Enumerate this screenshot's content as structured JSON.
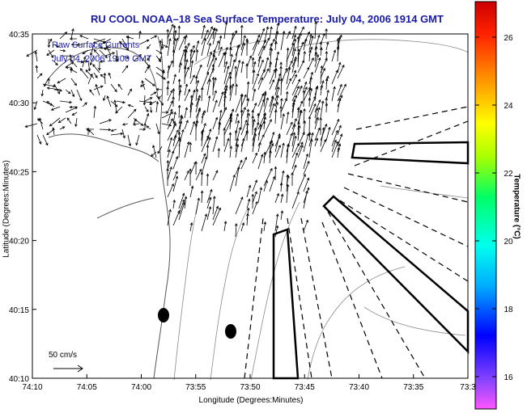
{
  "title": "RU COOL  NOAA–18  Sea Surface Temperature:  July 04, 2006 1914 GMT",
  "legend": {
    "line1": "Raw Surface Currents",
    "line2": "July 04, 2006 19:00 GMT"
  },
  "axes": {
    "xlabel": "Longitude (Degrees:Minutes)",
    "ylabel": "Latitude (Degrees:Minutes)",
    "x_ticks": [
      "74:10",
      "74:05",
      "74:00",
      "73:55",
      "73:50",
      "73:45",
      "73:40",
      "73:35",
      "73:3"
    ],
    "y_ticks": [
      "40:35",
      "40:30",
      "40:25",
      "40:20",
      "40:15",
      "40:10"
    ]
  },
  "scale_label": "50 cm/s",
  "colorbar": {
    "label": "Temperature (°C)",
    "ticks": [
      "26",
      "24",
      "22",
      "20",
      "18",
      "16"
    ]
  },
  "colors": {
    "title_text": "#1a1aa8",
    "lines": "#000000",
    "contours": "#8a8a8a"
  }
}
